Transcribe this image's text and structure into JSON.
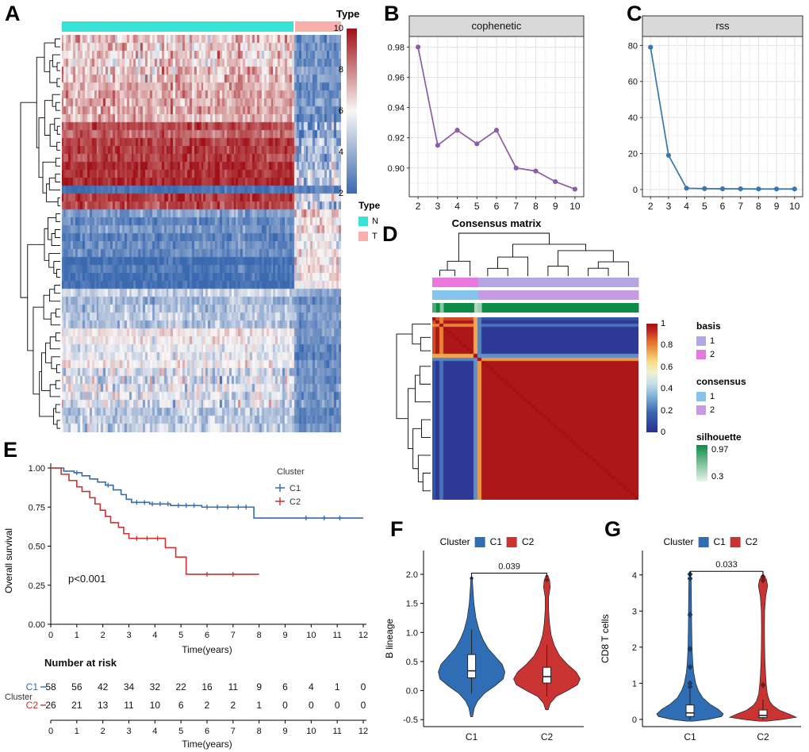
{
  "panels": {
    "a": {
      "label": "A"
    },
    "b": {
      "label": "B"
    },
    "c": {
      "label": "C"
    },
    "d": {
      "label": "D"
    },
    "e": {
      "label": "E"
    },
    "f": {
      "label": "F"
    },
    "g": {
      "label": "G"
    }
  },
  "colors": {
    "c1": "#2F6EB4",
    "c2": "#C93332",
    "strip_bg": "#D9D9D9",
    "grid_major": "#E2E2E2",
    "grid_minor": "#F1F1F1"
  },
  "chart_data": [
    {
      "id": "A",
      "type": "heatmap",
      "n_cols_normal": 100,
      "n_cols_tumor": 20,
      "annotation": {
        "title": "Type",
        "groups": [
          {
            "name": "N",
            "color": "#36E3D4",
            "cols": 100
          },
          {
            "name": "T",
            "color": "#F9AFAB",
            "cols": 20
          }
        ]
      },
      "colorbar": {
        "min": 2,
        "max": 10,
        "ticks": [
          10,
          8,
          6,
          4,
          2
        ],
        "low": "#3A69B0",
        "mid": "#F9F7F6",
        "high": "#A01016"
      },
      "row_groups": [
        {
          "rows": 6,
          "mean_n": 6.6,
          "sd_n": 1.5,
          "mean_t": 3.1,
          "sd_t": 0.9
        },
        {
          "rows": 5,
          "mean_n": 7.6,
          "sd_n": 1.1,
          "mean_t": 3.4,
          "sd_t": 1.0
        },
        {
          "rows": 8,
          "mean_n": 9.2,
          "sd_n": 0.7,
          "mean_t": 4.4,
          "sd_t": 2.2
        },
        {
          "rows": 1,
          "mean_n": 2.8,
          "sd_n": 0.5,
          "mean_t": 3.2,
          "sd_t": 0.6
        },
        {
          "rows": 2,
          "mean_n": 9.0,
          "sd_n": 0.8,
          "mean_t": 5.2,
          "sd_t": 2.2
        },
        {
          "rows": 6,
          "mean_n": 3.1,
          "sd_n": 0.8,
          "mean_t": 6.2,
          "sd_t": 1.4
        },
        {
          "rows": 4,
          "mean_n": 2.3,
          "sd_n": 0.6,
          "mean_t": 6.4,
          "sd_t": 1.4
        },
        {
          "rows": 5,
          "mean_n": 4.6,
          "sd_n": 1.0,
          "mean_t": 3.4,
          "sd_t": 0.8
        },
        {
          "rows": 5,
          "mean_n": 5.9,
          "sd_n": 1.0,
          "mean_t": 3.0,
          "sd_t": 0.8
        },
        {
          "rows": 5,
          "mean_n": 5.4,
          "sd_n": 1.6,
          "mean_t": 3.2,
          "sd_t": 0.8
        },
        {
          "rows": 3,
          "mean_n": 4.9,
          "sd_n": 1.2,
          "mean_t": 3.1,
          "sd_t": 0.7
        }
      ]
    },
    {
      "id": "B",
      "type": "line",
      "title": "cophenetic",
      "xlabel": "Consensus matrix",
      "x": [
        2,
        3,
        4,
        5,
        6,
        7,
        8,
        9,
        10
      ],
      "y": [
        0.98,
        0.915,
        0.925,
        0.916,
        0.925,
        0.9,
        0.898,
        0.891,
        0.886
      ],
      "ytick_vals": [
        0.9,
        0.92,
        0.94,
        0.96,
        0.98
      ],
      "ytick_labels": [
        "0.90",
        "0.92",
        "0.94",
        "0.96",
        "0.98"
      ],
      "minor_y": [
        0.89,
        0.91,
        0.93,
        0.95,
        0.97
      ],
      "ylim": [
        0.881,
        0.987
      ],
      "color": "#8B5DA8"
    },
    {
      "id": "C",
      "type": "line",
      "title": "rss",
      "xlabel": "",
      "x": [
        2,
        3,
        4,
        5,
        6,
        7,
        8,
        9,
        10
      ],
      "y": [
        79,
        19,
        0.7,
        0.5,
        0.4,
        0.4,
        0.3,
        0.3,
        0.3
      ],
      "ytick_vals": [
        0,
        20,
        40,
        60,
        80
      ],
      "ytick_labels": [
        "0",
        "20",
        "40",
        "60",
        "80"
      ],
      "minor_y": [
        10,
        30,
        50,
        70
      ],
      "ylim": [
        -4,
        85
      ],
      "color": "#3A76AE"
    },
    {
      "id": "D",
      "type": "consensus-heatmap",
      "n_samples": 54,
      "cluster_sizes": [
        12,
        42
      ],
      "uncertain_samples": {
        "0": 0.8,
        "2": 0.62,
        "11": 0.5,
        "12": 0.55
      },
      "colorbar": {
        "ticks": [
          "1",
          "0.8",
          "0.6",
          "0.4",
          "0.2",
          "0"
        ],
        "tick_vals": [
          1,
          0.8,
          0.6,
          0.4,
          0.2,
          0
        ],
        "stops": [
          [
            0,
            "#2B2F90"
          ],
          [
            0.18,
            "#3A64B0"
          ],
          [
            0.33,
            "#7FB2D8"
          ],
          [
            0.45,
            "#C6E0EA"
          ],
          [
            0.55,
            "#F0F0CE"
          ],
          [
            0.65,
            "#F7DC88"
          ],
          [
            0.75,
            "#F0A04A"
          ],
          [
            0.85,
            "#E06428"
          ],
          [
            0.93,
            "#C22A20"
          ],
          [
            1,
            "#A50F15"
          ]
        ]
      },
      "legends": {
        "basis": {
          "title": "basis",
          "items": [
            {
              "label": "1",
              "color": "#B3A6E2"
            },
            {
              "label": "2",
              "color": "#E878E0"
            }
          ]
        },
        "consensus": {
          "title": "consensus",
          "items": [
            {
              "label": "1",
              "color": "#85C4EC"
            },
            {
              "label": "2",
              "color": "#C79BE4"
            }
          ]
        },
        "silhouette": {
          "title": "silhouette",
          "high_label": "0.97",
          "low_label": "0.3",
          "high_color": "#0E8C47",
          "low_color": "#E8F5EB"
        }
      }
    },
    {
      "id": "E",
      "type": "km",
      "ylabel": "Overall survival",
      "xlabel": "Time(years)",
      "ytick_vals": [
        1.0,
        0.75,
        0.5,
        0.25,
        0
      ],
      "ytick_labels": [
        "1.00",
        "0.75",
        "0.50",
        "0.25",
        "0.00"
      ],
      "xticks": [
        0,
        1,
        2,
        3,
        4,
        5,
        6,
        7,
        8,
        9,
        10,
        11,
        12
      ],
      "pvalue": "p<0.001",
      "legend_title": "Cluster",
      "series": [
        {
          "name": "C1",
          "color": "#2F6EB4",
          "steps": [
            [
              0.5,
              0.98
            ],
            [
              0.9,
              0.97
            ],
            [
              1.2,
              0.95
            ],
            [
              1.5,
              0.93
            ],
            [
              1.8,
              0.91
            ],
            [
              2.1,
              0.89
            ],
            [
              2.4,
              0.86
            ],
            [
              2.7,
              0.83
            ],
            [
              2.9,
              0.8
            ],
            [
              3.1,
              0.78
            ],
            [
              3.8,
              0.77
            ],
            [
              4.6,
              0.76
            ],
            [
              5.8,
              0.75
            ],
            [
              7.8,
              0.68
            ],
            [
              12,
              0.68
            ]
          ],
          "censor_times": [
            1.0,
            2.2,
            3.3,
            3.6,
            3.9,
            4.2,
            4.5,
            4.9,
            5.2,
            5.5,
            6.0,
            6.4,
            6.8,
            7.2,
            7.5,
            9.8,
            10.5,
            11.1
          ]
        },
        {
          "name": "C2",
          "color": "#C93332",
          "steps": [
            [
              0.4,
              0.96
            ],
            [
              0.7,
              0.92
            ],
            [
              1.0,
              0.88
            ],
            [
              1.2,
              0.85
            ],
            [
              1.5,
              0.81
            ],
            [
              1.7,
              0.77
            ],
            [
              1.9,
              0.73
            ],
            [
              2.1,
              0.69
            ],
            [
              2.3,
              0.65
            ],
            [
              2.6,
              0.62
            ],
            [
              2.8,
              0.58
            ],
            [
              3.0,
              0.55
            ],
            [
              4.4,
              0.49
            ],
            [
              4.8,
              0.43
            ],
            [
              5.2,
              0.32
            ],
            [
              8.0,
              0.32
            ]
          ],
          "censor_times": [
            3.3,
            3.7,
            4.1,
            6.0,
            7.0
          ]
        }
      ],
      "risk_table": {
        "title": "Number at risk",
        "row_label": "Cluster",
        "times": [
          0,
          1,
          2,
          3,
          4,
          5,
          6,
          7,
          8,
          9,
          10,
          11,
          12
        ],
        "rows": [
          {
            "name": "C1",
            "color": "#2F6EB4",
            "counts": [
              58,
              56,
              42,
              34,
              32,
              22,
              16,
              11,
              9,
              6,
              4,
              1,
              0
            ]
          },
          {
            "name": "C2",
            "color": "#C93332",
            "counts": [
              26,
              21,
              13,
              11,
              10,
              6,
              2,
              2,
              1,
              0,
              0,
              0,
              0
            ]
          }
        ]
      }
    },
    {
      "id": "F",
      "type": "violin",
      "ylabel": "B lineage",
      "legend_title": "Cluster",
      "pvalue": "0.039",
      "bracket_y": 2.02,
      "ytick_vals": [
        2.0,
        1.5,
        1.0,
        0.5,
        0.0,
        -0.5
      ],
      "ytick_labels": [
        "2.0",
        "1.5",
        "1.0",
        "0.5",
        "0.0",
        "-0.5"
      ],
      "ylim": [
        -0.62,
        2.3
      ],
      "point_shape": "circle",
      "groups": [
        {
          "name": "C1",
          "color": "#2F6EB4",
          "profile": [
            [
              -0.45,
              0.03
            ],
            [
              -0.3,
              0.08
            ],
            [
              -0.18,
              0.18
            ],
            [
              -0.05,
              0.38
            ],
            [
              0.08,
              0.7
            ],
            [
              0.2,
              0.95
            ],
            [
              0.32,
              1.0
            ],
            [
              0.45,
              0.92
            ],
            [
              0.58,
              0.72
            ],
            [
              0.72,
              0.5
            ],
            [
              0.88,
              0.34
            ],
            [
              1.05,
              0.22
            ],
            [
              1.25,
              0.13
            ],
            [
              1.5,
              0.07
            ],
            [
              1.75,
              0.04
            ],
            [
              1.93,
              0.02
            ]
          ],
          "box": {
            "q1": 0.22,
            "median": 0.34,
            "q3": 0.62,
            "low": -0.05,
            "high": 1.05
          },
          "points": [
            1.93
          ]
        },
        {
          "name": "C2",
          "color": "#C93332",
          "profile": [
            [
              -0.33,
              0.04
            ],
            [
              -0.22,
              0.1
            ],
            [
              -0.1,
              0.28
            ],
            [
              0,
              0.62
            ],
            [
              0.1,
              0.92
            ],
            [
              0.2,
              1.0
            ],
            [
              0.32,
              0.88
            ],
            [
              0.45,
              0.62
            ],
            [
              0.6,
              0.38
            ],
            [
              0.78,
              0.22
            ],
            [
              0.95,
              0.13
            ],
            [
              1.15,
              0.08
            ],
            [
              1.4,
              0.05
            ],
            [
              1.6,
              0.05
            ],
            [
              1.78,
              0.1
            ],
            [
              1.9,
              0.08
            ],
            [
              1.98,
              0.03
            ]
          ],
          "box": {
            "q1": 0.13,
            "median": 0.24,
            "q3": 0.4,
            "low": -0.1,
            "high": 0.78
          },
          "points": [
            1.9
          ]
        }
      ]
    },
    {
      "id": "G",
      "type": "violin",
      "ylabel": "CD8 T cells",
      "legend_title": "Cluster",
      "pvalue": "0.033",
      "bracket_y": 4.1,
      "ytick_vals": [
        4,
        3,
        2,
        1,
        0
      ],
      "ytick_labels": [
        "4",
        "3",
        "2",
        "1",
        "0"
      ],
      "ylim": [
        -0.2,
        4.5
      ],
      "point_shape": "diamond",
      "groups": [
        {
          "name": "C1",
          "color": "#2F6EB4",
          "profile": [
            [
              -0.05,
              0.1
            ],
            [
              0,
              0.55
            ],
            [
              0.08,
              0.95
            ],
            [
              0.15,
              1.0
            ],
            [
              0.28,
              0.85
            ],
            [
              0.42,
              0.6
            ],
            [
              0.6,
              0.38
            ],
            [
              0.8,
              0.25
            ],
            [
              1.0,
              0.17
            ],
            [
              1.3,
              0.11
            ],
            [
              1.6,
              0.08
            ],
            [
              2.0,
              0.06
            ],
            [
              2.5,
              0.05
            ],
            [
              3.0,
              0.045
            ],
            [
              3.5,
              0.04
            ],
            [
              3.8,
              0.035
            ],
            [
              4.02,
              0.02
            ]
          ],
          "box": {
            "q1": 0.08,
            "median": 0.18,
            "q3": 0.4,
            "low": -0.02,
            "high": 0.85
          },
          "points": [
            0.9,
            1.0,
            1.45,
            1.95,
            2.9,
            3.9,
            4.02
          ]
        },
        {
          "name": "C2",
          "color": "#C93332",
          "profile": [
            [
              -0.05,
              0.12
            ],
            [
              0,
              0.6
            ],
            [
              0.06,
              1.0
            ],
            [
              0.15,
              0.78
            ],
            [
              0.25,
              0.5
            ],
            [
              0.38,
              0.3
            ],
            [
              0.5,
              0.2
            ],
            [
              0.7,
              0.13
            ],
            [
              0.95,
              0.1
            ],
            [
              1.2,
              0.08
            ],
            [
              1.6,
              0.06
            ],
            [
              2.0,
              0.05
            ],
            [
              2.5,
              0.045
            ],
            [
              3.0,
              0.05
            ],
            [
              3.4,
              0.08
            ],
            [
              3.7,
              0.14
            ],
            [
              3.88,
              0.1
            ],
            [
              3.98,
              0.03
            ]
          ],
          "box": {
            "q1": 0.05,
            "median": 0.11,
            "q3": 0.26,
            "low": -0.02,
            "high": 0.55
          },
          "points": [
            0.95,
            3.85,
            3.95
          ]
        }
      ]
    }
  ]
}
